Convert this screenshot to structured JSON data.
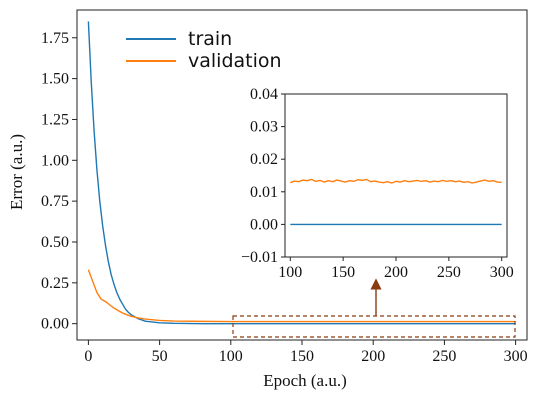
{
  "chart_data": [
    {
      "type": "line",
      "xlabel": "Epoch (a.u.)",
      "ylabel": "Error (a.u.)",
      "xlim": [
        -8,
        308
      ],
      "ylim": [
        -0.1,
        1.92
      ],
      "xticks": [
        0,
        50,
        100,
        150,
        200,
        250,
        300
      ],
      "yticks": [
        0.0,
        0.25,
        0.5,
        0.75,
        1.0,
        1.25,
        1.5,
        1.75
      ],
      "ytick_labels": [
        "0.00",
        "0.25",
        "0.50",
        "0.75",
        "1.00",
        "1.25",
        "1.50",
        "1.75"
      ],
      "legend_position": "top-left",
      "grid": false,
      "series": [
        {
          "name": "train",
          "color": "#1f77b4",
          "x": [
            0,
            2,
            4,
            6,
            8,
            10,
            12,
            14,
            16,
            18,
            20,
            22,
            24,
            26,
            28,
            30,
            35,
            40,
            50,
            60,
            80,
            100,
            150,
            200,
            250,
            300
          ],
          "y": [
            1.85,
            1.48,
            1.18,
            0.94,
            0.75,
            0.6,
            0.48,
            0.38,
            0.3,
            0.24,
            0.19,
            0.15,
            0.12,
            0.09,
            0.07,
            0.055,
            0.03,
            0.015,
            0.005,
            0.002,
            0.0,
            0.0,
            0.0,
            0.0,
            0.0,
            0.0
          ]
        },
        {
          "name": "validation",
          "color": "#ff7f0e",
          "x": [
            0,
            3,
            6,
            9,
            12,
            15,
            18,
            21,
            24,
            27,
            30,
            35,
            40,
            50,
            60,
            80,
            100,
            150,
            200,
            250,
            300
          ],
          "y": [
            0.33,
            0.26,
            0.19,
            0.15,
            0.135,
            0.115,
            0.095,
            0.08,
            0.065,
            0.055,
            0.045,
            0.035,
            0.028,
            0.02,
            0.016,
            0.014,
            0.013,
            0.013,
            0.013,
            0.013,
            0.013
          ]
        }
      ]
    },
    {
      "type": "line",
      "xlim": [
        95,
        305
      ],
      "ylim": [
        -0.01,
        0.04
      ],
      "xticks": [
        100,
        150,
        200,
        250,
        300
      ],
      "yticks": [
        -0.01,
        0.0,
        0.01,
        0.02,
        0.03,
        0.04
      ],
      "ytick_labels": [
        "−0.01",
        "0.00",
        "0.01",
        "0.02",
        "0.03",
        "0.04"
      ],
      "grid": false,
      "series": [
        {
          "name": "train",
          "color": "#1f77b4",
          "x": [
            100,
            300
          ],
          "y": [
            0.0,
            0.0
          ]
        },
        {
          "name": "validation",
          "color": "#ff7f0e",
          "x": [
            100,
            104,
            108,
            112,
            116,
            120,
            124,
            128,
            132,
            136,
            140,
            144,
            148,
            152,
            156,
            160,
            164,
            168,
            172,
            176,
            180,
            184,
            188,
            192,
            196,
            200,
            204,
            208,
            212,
            216,
            220,
            224,
            228,
            232,
            236,
            240,
            244,
            248,
            252,
            256,
            260,
            264,
            268,
            272,
            276,
            280,
            284,
            288,
            292,
            296,
            300
          ],
          "y": [
            0.0128,
            0.0133,
            0.0131,
            0.0136,
            0.0134,
            0.0138,
            0.0132,
            0.0135,
            0.013,
            0.0134,
            0.0131,
            0.0136,
            0.0133,
            0.013,
            0.0134,
            0.0132,
            0.0137,
            0.0135,
            0.0138,
            0.0131,
            0.0133,
            0.013,
            0.0128,
            0.0131,
            0.0127,
            0.0132,
            0.013,
            0.0134,
            0.0131,
            0.0133,
            0.0135,
            0.0132,
            0.0134,
            0.013,
            0.0133,
            0.0131,
            0.0135,
            0.0132,
            0.0134,
            0.0131,
            0.0133,
            0.0129,
            0.0131,
            0.0127,
            0.013,
            0.0133,
            0.0136,
            0.0132,
            0.0134,
            0.013,
            0.0129
          ]
        }
      ]
    }
  ]
}
